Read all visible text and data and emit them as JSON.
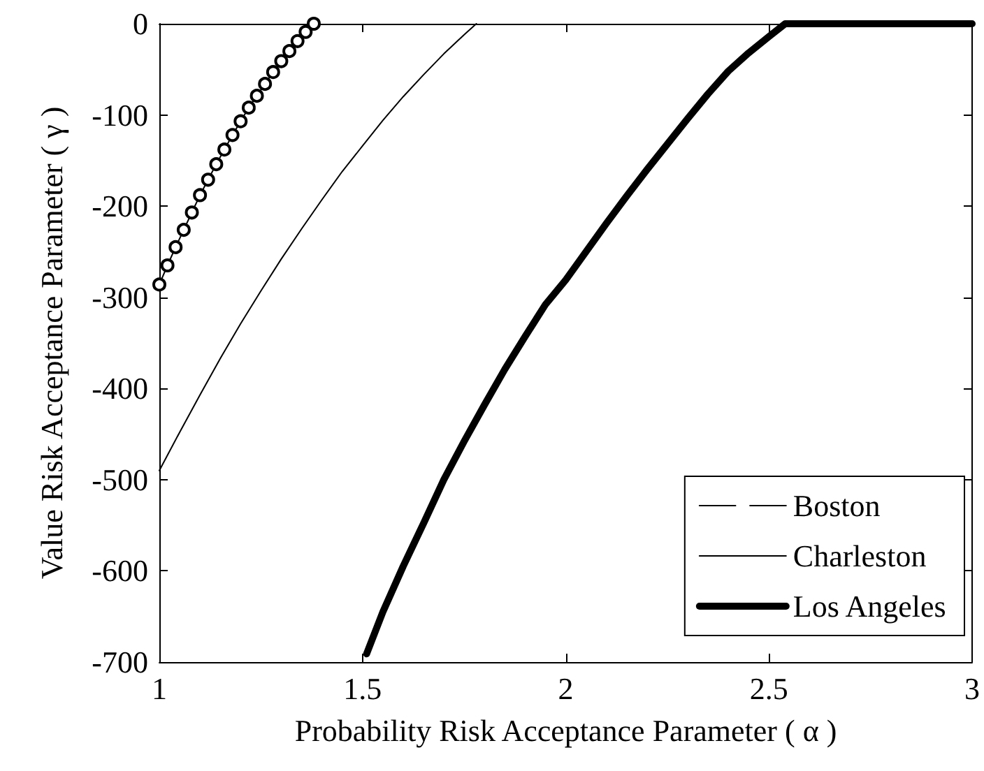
{
  "chart_data": {
    "type": "line",
    "xlabel": "Probability Risk Acceptance Parameter ( α )",
    "ylabel": "Value Risk Acceptance Parameter ( γ )",
    "xlim": [
      1,
      3
    ],
    "xticks": [
      1,
      1.5,
      2,
      2.5,
      3
    ],
    "ylim": [
      -700,
      0
    ],
    "yticks": [
      -700,
      -600,
      -500,
      -400,
      -300,
      -200,
      -100,
      0
    ],
    "grid": false,
    "legend": "bottom right",
    "series": [
      {
        "name": "Boston",
        "color": "#000000",
        "marker": "circle",
        "x": [
          1,
          1.02,
          1.04,
          1.06,
          1.08,
          1.1,
          1.12,
          1.14,
          1.16,
          1.18,
          1.2,
          1.22,
          1.24,
          1.26,
          1.28,
          1.3,
          1.32,
          1.34,
          1.36,
          1.38
        ],
        "values": [
          -286,
          -265,
          -245,
          -226,
          -207,
          -188,
          -171,
          -154,
          -138,
          -122,
          -107,
          -92,
          -79,
          -66,
          -53,
          -41,
          -30,
          -19,
          -9,
          0
        ]
      },
      {
        "name": "Charleston",
        "color": "#000000",
        "marker": "none",
        "x": [
          1,
          1.05,
          1.1,
          1.15,
          1.2,
          1.25,
          1.3,
          1.35,
          1.4,
          1.45,
          1.5,
          1.55,
          1.6,
          1.65,
          1.7,
          1.75,
          1.78
        ],
        "values": [
          -490,
          -448,
          -407,
          -367,
          -329,
          -293,
          -258,
          -225,
          -193,
          -162,
          -134,
          -106,
          -80,
          -56,
          -33,
          -12,
          0
        ]
      },
      {
        "name": "Los Angeles",
        "color": "#000000",
        "marker": "none",
        "x": [
          1.51,
          1.55,
          1.6,
          1.65,
          1.7,
          1.75,
          1.8,
          1.85,
          1.9,
          1.95,
          2,
          2.05,
          2.1,
          2.15,
          2.2,
          2.25,
          2.3,
          2.35,
          2.4,
          2.45,
          2.5,
          2.54,
          2.6,
          2.7,
          2.8,
          2.9,
          3
        ],
        "values": [
          -691,
          -645,
          -595,
          -548,
          -500,
          -458,
          -418,
          -379,
          -343,
          -308,
          -281,
          -250,
          -219,
          -189,
          -160,
          -132,
          -104,
          -77,
          -52,
          -32,
          -14,
          0,
          0,
          0,
          0,
          0,
          0
        ]
      }
    ]
  }
}
